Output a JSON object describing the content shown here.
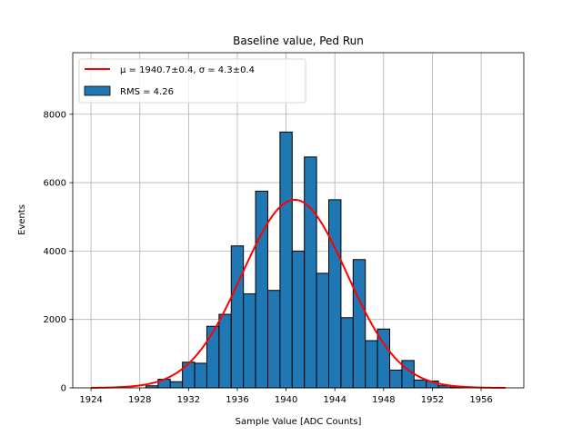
{
  "chart_data": {
    "type": "bar",
    "title": "Baseline value, Ped Run",
    "xlabel": "Sample Value [ADC Counts]",
    "ylabel": "Events",
    "xlim": [
      1922.5,
      1959.5
    ],
    "ylim": [
      0,
      9800
    ],
    "x_ticks": [
      1924,
      1928,
      1932,
      1936,
      1940,
      1944,
      1948,
      1952,
      1956
    ],
    "y_ticks": [
      0,
      2000,
      4000,
      6000,
      8000
    ],
    "grid": true,
    "legend_position": "top-left",
    "bin_width": 1,
    "bin_centers": [
      1929,
      1930,
      1931,
      1932,
      1933,
      1934,
      1935,
      1936,
      1937,
      1938,
      1939,
      1940,
      1941,
      1942,
      1943,
      1944,
      1945,
      1946,
      1947,
      1948,
      1949,
      1950,
      1951,
      1952,
      1953,
      1954
    ],
    "values": [
      60,
      250,
      180,
      750,
      720,
      1800,
      2150,
      4150,
      2750,
      5750,
      2850,
      7480,
      4000,
      6750,
      3350,
      5500,
      2050,
      3750,
      1380,
      1720,
      520,
      800,
      230,
      200,
      60,
      20
    ],
    "fit": {
      "label": "$\\mu = 1940.7 \\pm 0.4$, $\\sigma = 4.3 \\pm 0.4$",
      "label_text": "μ = 1940.7±0.4, σ = 4.3±0.4",
      "mu": 1940.7,
      "sigma": 4.3,
      "amplitude": 5500,
      "x_range": [
        1924,
        1958
      ],
      "color": "#ff0000"
    },
    "series": [
      {
        "name": "RMS = 4.26",
        "color": "#1f77b4",
        "edge_color": "#000000"
      }
    ]
  }
}
